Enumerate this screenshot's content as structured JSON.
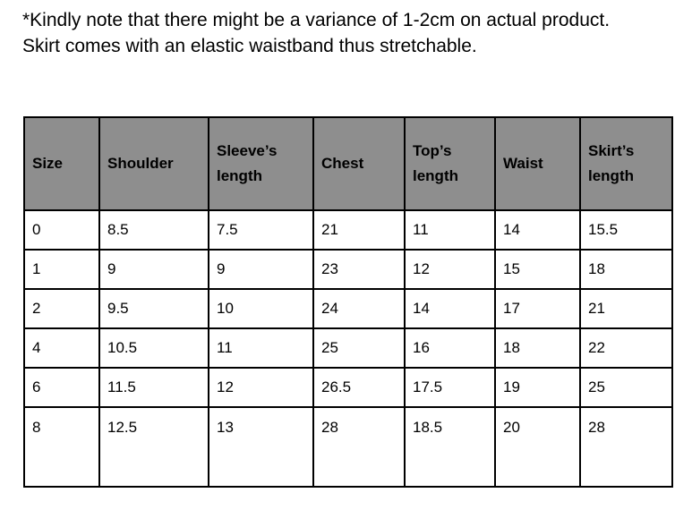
{
  "note": {
    "line1": "*Kindly note that there might be a variance of 1-2cm on actual product.",
    "line2": "Skirt comes with an elastic waistband thus stretchable."
  },
  "table": {
    "header_color": "#8e8e8e",
    "columns": [
      "Size",
      "Shoulder",
      "Sleeve’s length",
      "Chest",
      "Top’s length",
      "Waist",
      "Skirt’s length"
    ],
    "rows": [
      [
        "0",
        "8.5",
        "7.5",
        "21",
        "11",
        "14",
        "15.5"
      ],
      [
        "1",
        "9",
        "9",
        "23",
        "12",
        "15",
        "18"
      ],
      [
        "2",
        "9.5",
        "10",
        "24",
        "14",
        "17",
        "21"
      ],
      [
        "4",
        "10.5",
        "11",
        "25",
        "16",
        "18",
        "22"
      ],
      [
        "6",
        "11.5",
        "12",
        "26.5",
        "17.5",
        "19",
        "25"
      ],
      [
        "8",
        "12.5",
        "13",
        "28",
        "18.5",
        "20",
        "28"
      ]
    ]
  }
}
